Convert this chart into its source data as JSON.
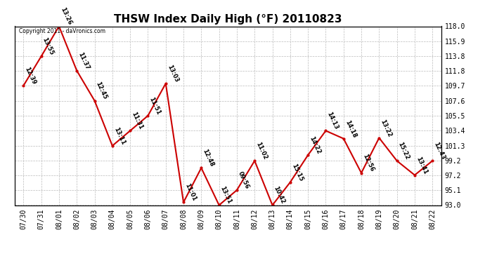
{
  "title": "THSW Index Daily High (°F) 20110823",
  "copyright": "Copyright 2011 - daVronics.com",
  "dates": [
    "07/30",
    "07/31",
    "08/01",
    "08/02",
    "08/03",
    "08/04",
    "08/05",
    "08/06",
    "08/07",
    "08/08",
    "08/09",
    "08/10",
    "08/11",
    "08/12",
    "08/13",
    "08/14",
    "08/15",
    "08/16",
    "08/17",
    "08/18",
    "08/19",
    "08/20",
    "08/21",
    "08/22"
  ],
  "values": [
    109.7,
    113.8,
    118.0,
    111.8,
    107.6,
    101.3,
    103.4,
    105.5,
    110.0,
    93.4,
    98.2,
    93.0,
    95.1,
    99.2,
    93.0,
    96.2,
    100.0,
    103.4,
    102.3,
    97.5,
    102.4,
    99.2,
    97.2,
    99.2
  ],
  "labels": [
    "12:39",
    "13:55",
    "13:26",
    "11:37",
    "12:45",
    "13:11",
    "11:31",
    "11:51",
    "13:03",
    "11:01",
    "12:48",
    "13:51",
    "09:56",
    "11:02",
    "10:42",
    "15:15",
    "14:22",
    "14:13",
    "14:18",
    "12:56",
    "13:22",
    "15:22",
    "13:41",
    "12:43"
  ],
  "ylim": [
    93.0,
    118.0
  ],
  "yticks": [
    93.0,
    95.1,
    97.2,
    99.2,
    101.3,
    103.4,
    105.5,
    107.6,
    109.7,
    111.8,
    113.8,
    115.9,
    118.0
  ],
  "line_color": "#cc0000",
  "marker_color": "#cc0000",
  "bg_color": "#ffffff",
  "grid_color": "#bbbbbb",
  "title_fontsize": 11,
  "tick_fontsize": 7,
  "label_fontsize": 6
}
